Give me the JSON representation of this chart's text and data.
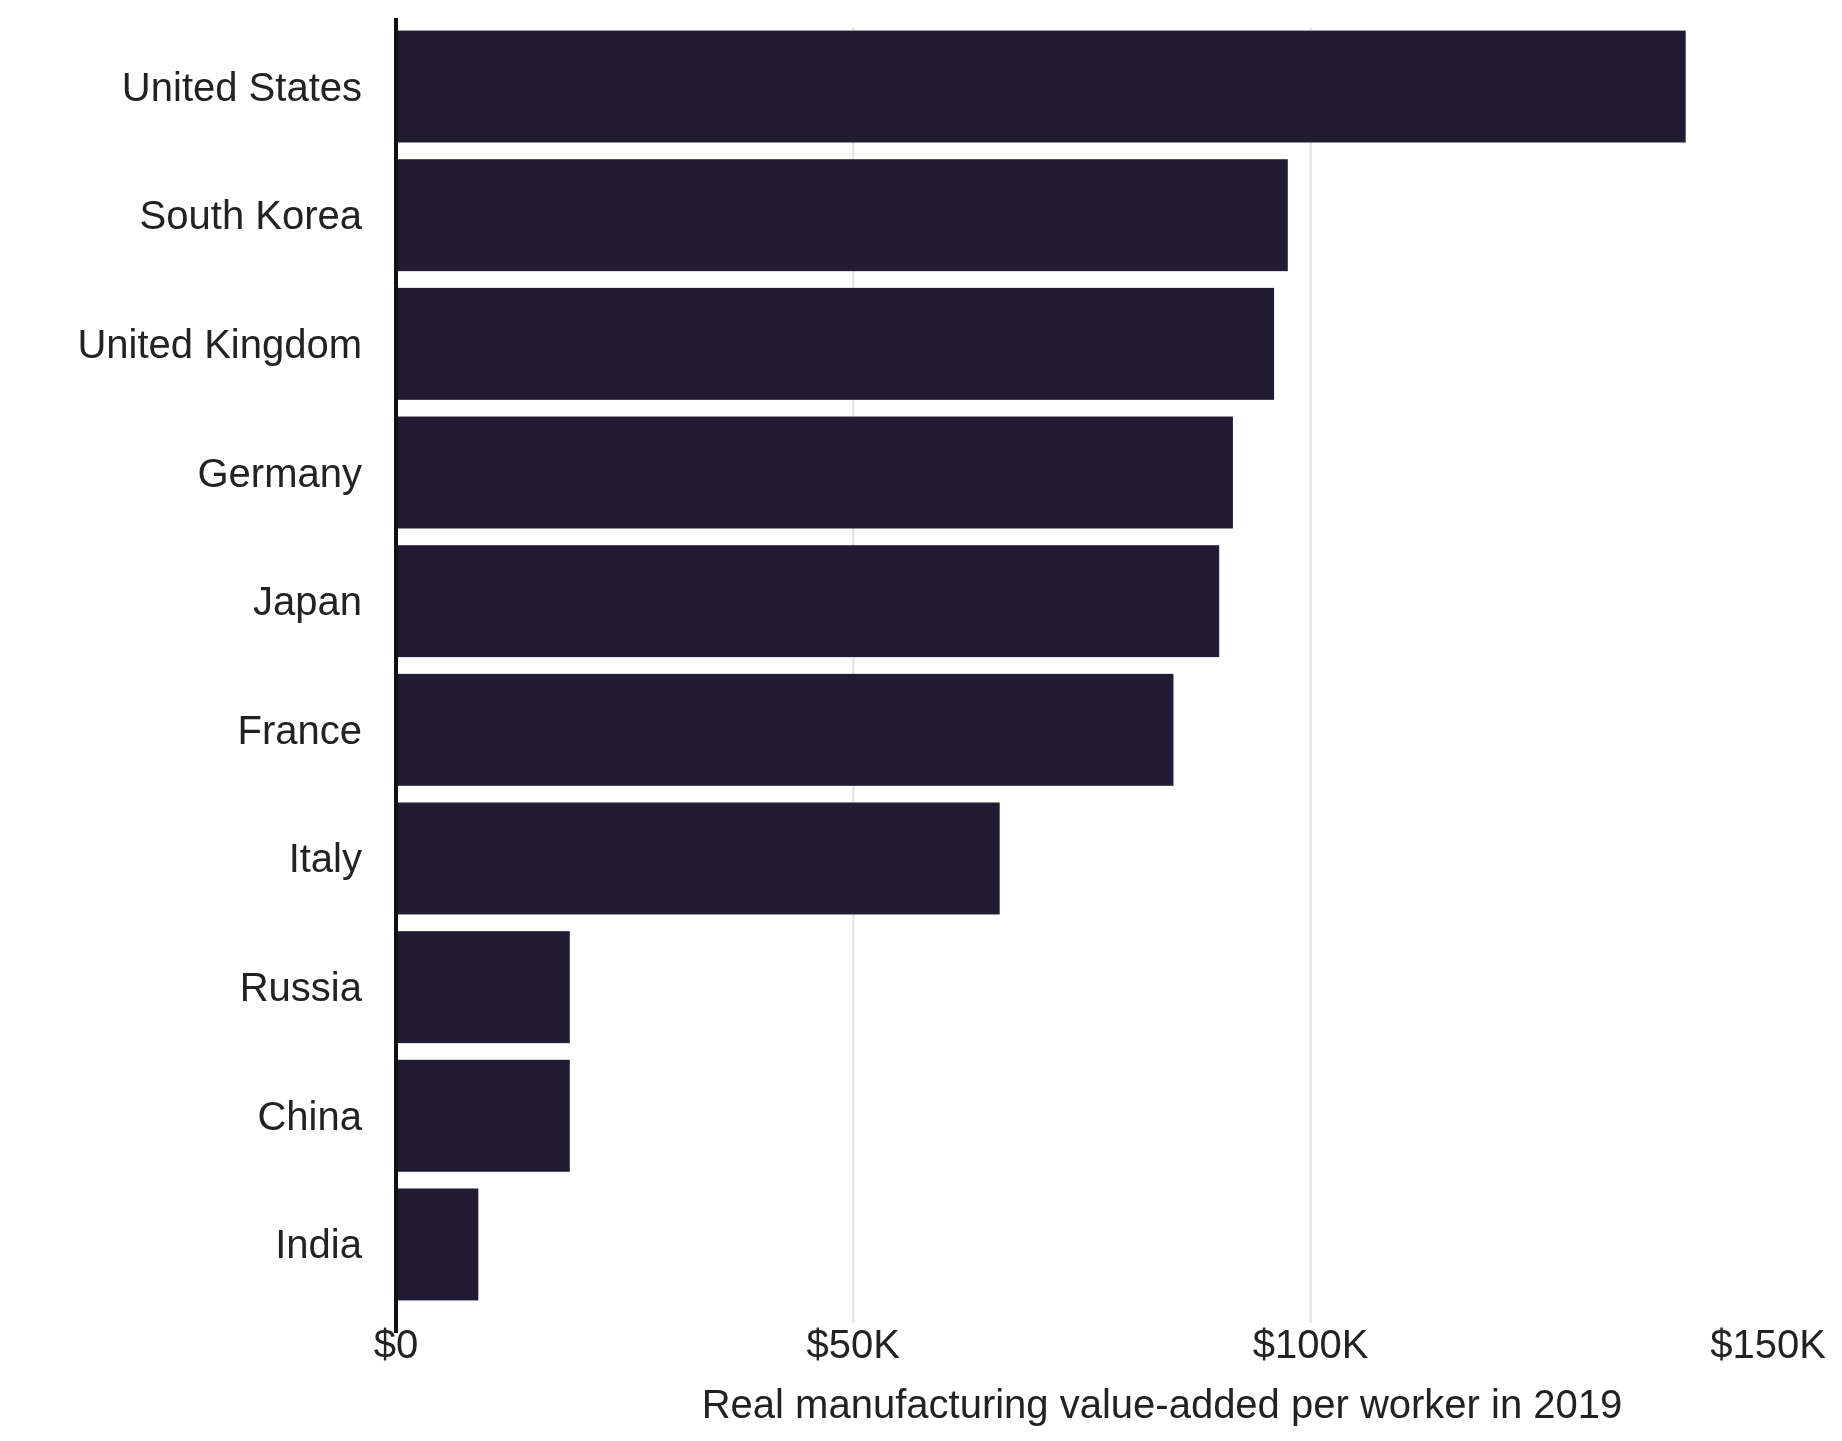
{
  "chart_data": {
    "type": "bar",
    "orientation": "horizontal",
    "xlabel": "Real manufacturing value-added per worker in 2019",
    "categories": [
      "United States",
      "South Korea",
      "United Kingdom",
      "Germany",
      "Japan",
      "France",
      "Italy",
      "Russia",
      "China",
      "India"
    ],
    "values": [
      141000,
      97500,
      96000,
      91500,
      90000,
      85000,
      66000,
      19000,
      19000,
      9000
    ],
    "color": "#211c33",
    "xlim": [
      0,
      150000
    ],
    "xticks": [
      {
        "value": 0,
        "label": "$0"
      },
      {
        "value": 50000,
        "label": "$50K"
      },
      {
        "value": 100000,
        "label": "$100K"
      },
      {
        "value": 150000,
        "label": "$150K"
      }
    ],
    "grid": "x"
  }
}
